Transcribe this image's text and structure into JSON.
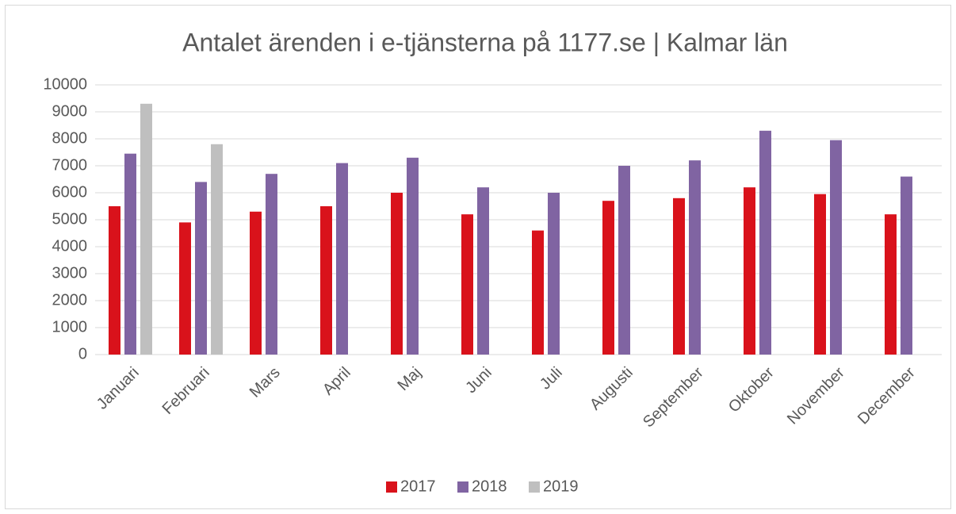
{
  "chart_data": {
    "type": "bar",
    "title": "Antalet ärenden i e-tjänsterna på 1177.se  |  Kalmar län",
    "categories": [
      "Januari",
      "Februari",
      "Mars",
      "April",
      "Maj",
      "Juni",
      "Juli",
      "Augusti",
      "September",
      "Oktober",
      "November",
      "December"
    ],
    "series": [
      {
        "name": "2017",
        "color": "#d9121b",
        "values": [
          5500,
          4900,
          5300,
          5500,
          6000,
          5200,
          4600,
          5700,
          5800,
          6200,
          5950,
          5200
        ]
      },
      {
        "name": "2018",
        "color": "#8064a2",
        "values": [
          7450,
          6400,
          6700,
          7100,
          7300,
          6200,
          6000,
          7000,
          7200,
          8300,
          7950,
          6600
        ]
      },
      {
        "name": "2019",
        "color": "#bfbfbf",
        "values": [
          9300,
          7800,
          null,
          null,
          null,
          null,
          null,
          null,
          null,
          null,
          null,
          null
        ]
      }
    ],
    "ylim": [
      0,
      10000
    ],
    "yticks": [
      0,
      1000,
      2000,
      3000,
      4000,
      5000,
      6000,
      7000,
      8000,
      9000,
      10000
    ],
    "grid": true,
    "legend": "bottom"
  }
}
